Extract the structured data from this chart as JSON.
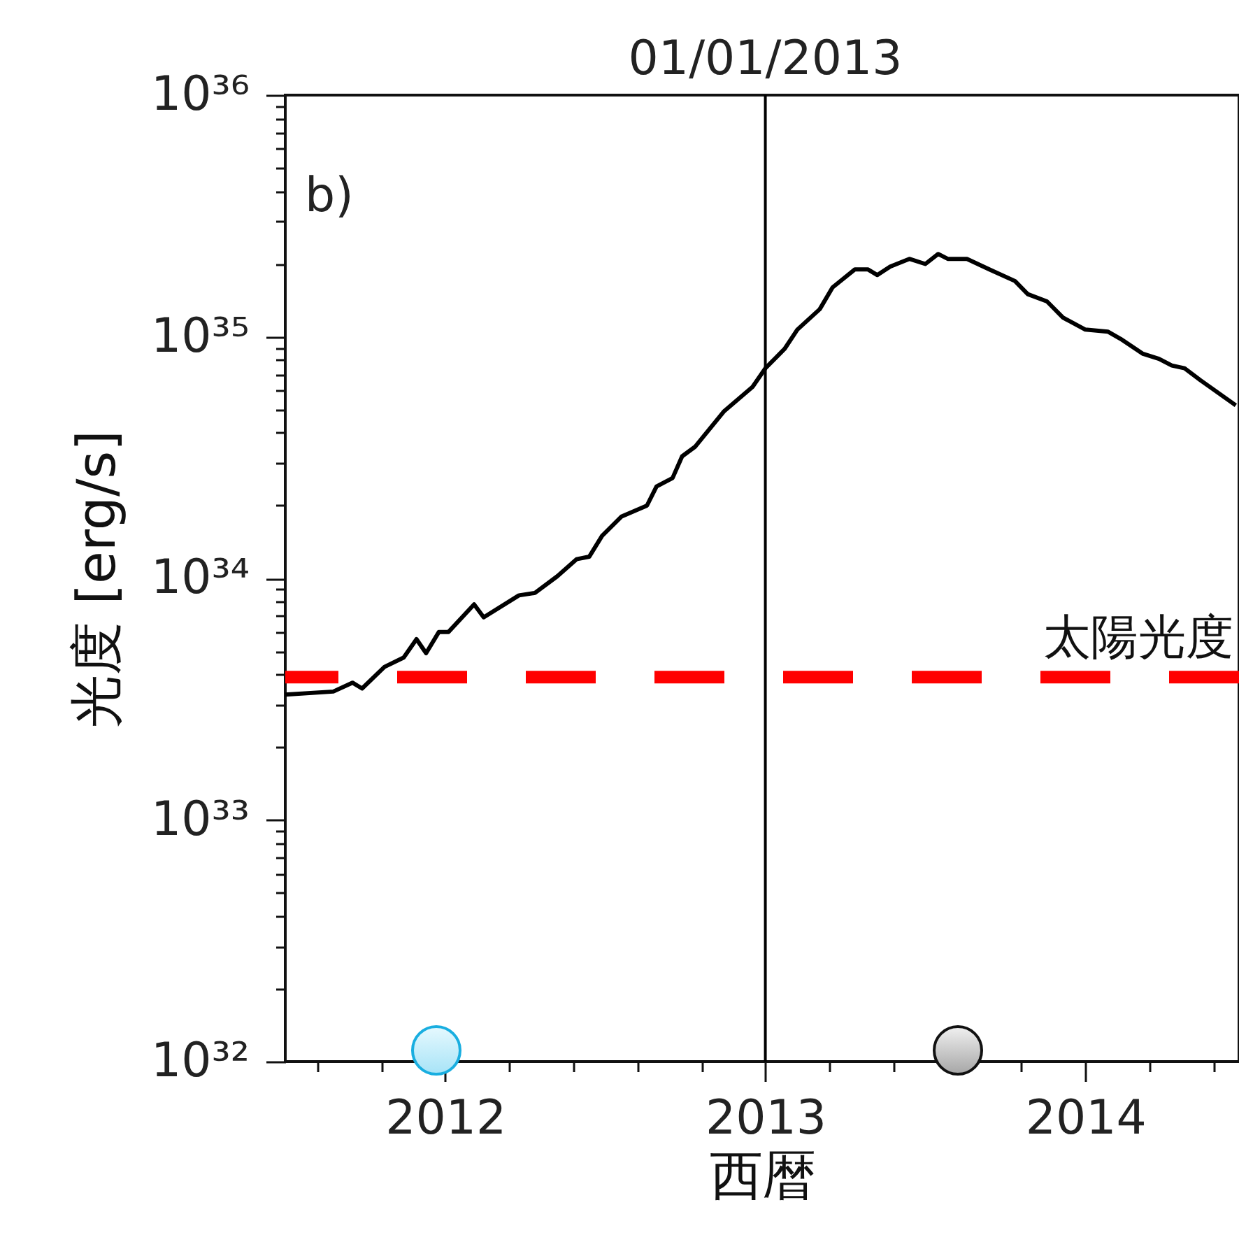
{
  "chart_data": {
    "type": "line",
    "xlabel": "西暦",
    "ylabel": "光度 [erg/s]",
    "annotations": [
      "b)"
    ],
    "x": [
      2011.5,
      2011.65,
      2011.71,
      2011.74,
      2011.81,
      2011.87,
      2011.91,
      2011.94,
      2011.98,
      2012.01,
      2012.09,
      2012.12,
      2012.23,
      2012.28,
      2012.35,
      2012.41,
      2012.45,
      2012.49,
      2012.55,
      2012.63,
      2012.66,
      2012.71,
      2012.74,
      2012.78,
      2012.87,
      2012.96,
      2013.0,
      2013.06,
      2013.1,
      2013.17,
      2013.21,
      2013.28,
      2013.32,
      2013.35,
      2013.39,
      2013.45,
      2013.5,
      2013.54,
      2013.57,
      2013.63,
      2013.7,
      2013.78,
      2013.82,
      2013.88,
      2013.93,
      2014.0,
      2014.07,
      2014.11,
      2014.18,
      2014.23,
      2014.27,
      2014.31,
      2014.36,
      2014.47
    ],
    "series": [
      {
        "color": "#000000",
        "values": [
          3.3e+33,
          3.4e+33,
          3.7e+33,
          3.5e+33,
          4.3e+33,
          4.7e+33,
          5.6e+33,
          4.9e+33,
          6e+33,
          6e+33,
          7.8e+33,
          6.9e+33,
          8.5e+33,
          8.7e+33,
          1.02e+34,
          1.2e+34,
          1.23e+34,
          1.5e+34,
          1.8e+34,
          2e+34,
          2.4e+34,
          2.6e+34,
          3.2e+34,
          3.5e+34,
          4.9e+34,
          6.2e+34,
          7.4e+34,
          8.9e+34,
          1.07e+35,
          1.3e+35,
          1.6e+35,
          1.9e+35,
          1.9e+35,
          1.8e+35,
          1.95e+35,
          2.1e+35,
          2e+35,
          2.2e+35,
          2.1e+35,
          2.1e+35,
          1.9e+35,
          1.7e+35,
          1.5e+35,
          1.4e+35,
          1.2e+35,
          1.07e+35,
          1.05e+35,
          9.8e+34,
          8.5e+34,
          8.1e+34,
          7.6e+34,
          7.4e+34,
          6.6e+34,
          5.2e+34
        ]
      }
    ],
    "log": "y",
    "xlim": [
      2011.5,
      2014.48
    ],
    "xticks": [
      {
        "value": 2011.6,
        "label": null
      },
      {
        "value": 2011.8,
        "label": null
      },
      2012,
      {
        "value": 2012.2,
        "label": null
      },
      {
        "value": 2012.4,
        "label": null
      },
      {
        "value": 2012.6,
        "label": null
      },
      {
        "value": 2012.8,
        "label": null
      },
      2013,
      {
        "value": 2013.2,
        "label": null
      },
      {
        "value": 2013.4,
        "label": null
      },
      {
        "value": 2013.6,
        "label": null
      },
      {
        "value": 2013.8,
        "label": null
      },
      2014,
      {
        "value": 2014.2,
        "label": null
      },
      {
        "value": 2014.4,
        "label": null
      }
    ],
    "ylim": [
      1e+32,
      1e+36
    ],
    "yticks": [
      {
        "value": 1e+32,
        "label": "10³²"
      },
      {
        "value": 2e+32,
        "label": null
      },
      {
        "value": 3e+32,
        "label": null
      },
      {
        "value": 4e+32,
        "label": null
      },
      {
        "value": 5e+32,
        "label": null
      },
      {
        "value": 6e+32,
        "label": null
      },
      {
        "value": 7e+32,
        "label": null
      },
      {
        "value": 8e+32,
        "label": null
      },
      {
        "value": 9e+32,
        "label": null
      },
      {
        "value": 1e+33,
        "label": "10³³"
      },
      {
        "value": 2e+33,
        "label": null
      },
      {
        "value": 3e+33,
        "label": null
      },
      {
        "value": 4e+33,
        "label": null
      },
      {
        "value": 5e+33,
        "label": null
      },
      {
        "value": 6e+33,
        "label": null
      },
      {
        "value": 7e+33,
        "label": null
      },
      {
        "value": 8e+33,
        "label": null
      },
      {
        "value": 9e+33,
        "label": null
      },
      {
        "value": 1e+34,
        "label": "10³⁴"
      },
      {
        "value": 2e+34,
        "label": null
      },
      {
        "value": 3e+34,
        "label": null
      },
      {
        "value": 4e+34,
        "label": null
      },
      {
        "value": 5e+34,
        "label": null
      },
      {
        "value": 6e+34,
        "label": null
      },
      {
        "value": 7e+34,
        "label": null
      },
      {
        "value": 8e+34,
        "label": null
      },
      {
        "value": 9e+34,
        "label": null
      },
      {
        "value": 1e+35,
        "label": "10³⁵"
      },
      {
        "value": 2e+35,
        "label": null
      },
      {
        "value": 3e+35,
        "label": null
      },
      {
        "value": 4e+35,
        "label": null
      },
      {
        "value": 5e+35,
        "label": null
      },
      {
        "value": 6e+35,
        "label": null
      },
      {
        "value": 7e+35,
        "label": null
      },
      {
        "value": 8e+35,
        "label": null
      },
      {
        "value": 9e+35,
        "label": null
      },
      {
        "value": 1e+36,
        "label": "10³⁶"
      }
    ],
    "ref_lines": [
      {
        "axis": "x",
        "value": 2013,
        "label": "01/01/2013",
        "color": "#000000",
        "line_style": "solid"
      },
      {
        "axis": "y",
        "value": 3.9e+33,
        "label": "太陽光度",
        "color": "#ff0000",
        "line_style": "dashed"
      }
    ],
    "grid": false,
    "marker": "none",
    "line_style": "solid"
  }
}
